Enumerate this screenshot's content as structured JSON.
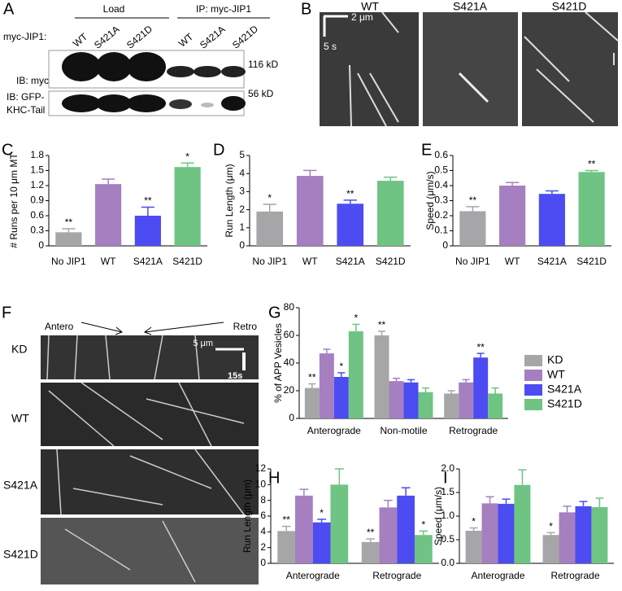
{
  "figure_a": {
    "letter": "A",
    "load": "Load",
    "ip": "IP: myc-JIP1",
    "row_label": "myc-JIP1:",
    "lanes": [
      "WT",
      "S421A",
      "S421D",
      "WT",
      "S421A",
      "S421D"
    ],
    "markers": [
      "116 kD",
      "56 kD"
    ],
    "blots": [
      "IB: myc",
      "IB: GFP-",
      "KHC-Tail"
    ]
  },
  "figure_b": {
    "letter": "B",
    "scale_x": "2 μm",
    "scale_t": "5 s",
    "labels": [
      "WT",
      "S421A",
      "S421D"
    ]
  },
  "figure_f": {
    "letter": "F",
    "antero": "Antero",
    "retro": "Retro",
    "scale_x": "5 μm",
    "scale_t": "15s",
    "rows": [
      "KD",
      "WT",
      "S421A",
      "S421D"
    ]
  },
  "chart_data": [
    {
      "panel": "C",
      "type": "bar",
      "ylabel": "# Runs per 10 μm MT",
      "categories": [
        "No JIP1",
        "WT",
        "S421A",
        "S421D"
      ],
      "values": [
        0.27,
        1.23,
        0.6,
        1.57
      ],
      "errors": [
        0.07,
        0.1,
        0.17,
        0.08
      ],
      "colors": [
        "#a6a6a8",
        "#a57fc0",
        "#4c4cf2",
        "#6fc483"
      ],
      "significance": [
        "**",
        null,
        "**",
        "*"
      ],
      "ylim": [
        0,
        1.8
      ],
      "yticks": [
        0,
        0.3,
        0.6,
        0.9,
        1.2,
        1.5,
        1.8
      ]
    },
    {
      "panel": "D",
      "type": "bar",
      "ylabel": "Run Length (μm)",
      "categories": [
        "No JIP1",
        "WT",
        "S421A",
        "S421D"
      ],
      "values": [
        1.9,
        3.87,
        2.33,
        3.6
      ],
      "errors": [
        0.4,
        0.3,
        0.2,
        0.2
      ],
      "colors": [
        "#a6a6a8",
        "#a57fc0",
        "#4c4cf2",
        "#6fc483"
      ],
      "significance": [
        "*",
        null,
        "**",
        null
      ],
      "ylim": [
        0,
        5
      ],
      "yticks": [
        0,
        1,
        2,
        3,
        4,
        5
      ]
    },
    {
      "panel": "E",
      "type": "bar",
      "ylabel": "Speed (μm/s)",
      "categories": [
        "No JIP1",
        "WT",
        "S421A",
        "S421D"
      ],
      "values": [
        0.23,
        0.4,
        0.345,
        0.49
      ],
      "errors": [
        0.03,
        0.02,
        0.02,
        0.01
      ],
      "colors": [
        "#a6a6a8",
        "#a57fc0",
        "#4c4cf2",
        "#6fc483"
      ],
      "significance": [
        "**",
        null,
        null,
        "**"
      ],
      "ylim": [
        0,
        0.6
      ],
      "yticks": [
        0,
        0.1,
        0.2,
        0.3,
        0.4,
        0.5,
        0.6
      ]
    },
    {
      "panel": "G",
      "type": "grouped_bar",
      "ylabel": "% of APP Vesicles",
      "legend": "right",
      "categories": [
        "Anterograde",
        "Non-motile",
        "Retrograde"
      ],
      "series": [
        {
          "name": "KD",
          "color": "#a6a6a8",
          "values": [
            22,
            60,
            18
          ],
          "errors": [
            3,
            3,
            2
          ],
          "significance": [
            "**",
            "**",
            null
          ]
        },
        {
          "name": "WT",
          "color": "#a57fc0",
          "values": [
            47,
            27,
            26
          ],
          "errors": [
            3,
            2,
            2
          ]
        },
        {
          "name": "S421A",
          "color": "#4c4cf2",
          "values": [
            30,
            26,
            44
          ],
          "errors": [
            3,
            2,
            3
          ],
          "significance": [
            "*",
            null,
            "**"
          ]
        },
        {
          "name": "S421D",
          "color": "#6fc483",
          "values": [
            63,
            19,
            18
          ],
          "errors": [
            5,
            3,
            4
          ],
          "significance": [
            "*",
            null,
            null
          ]
        }
      ],
      "ylim": [
        0,
        80
      ],
      "yticks": [
        0,
        20,
        40,
        60,
        80
      ]
    },
    {
      "panel": "H",
      "type": "grouped_bar",
      "ylabel": "Run Length (μm)",
      "categories": [
        "Anterograde",
        "Retrograde"
      ],
      "series": [
        {
          "color": "#a6a6a8",
          "values": [
            4.1,
            2.7
          ],
          "errors": [
            0.6,
            0.4
          ],
          "significance": [
            "**",
            "**"
          ]
        },
        {
          "color": "#a57fc0",
          "values": [
            8.6,
            7.1
          ],
          "errors": [
            0.8,
            0.9
          ]
        },
        {
          "color": "#4c4cf2",
          "values": [
            5.2,
            8.6
          ],
          "errors": [
            0.4,
            1
          ],
          "significance": [
            "*",
            null
          ]
        },
        {
          "color": "#6fc483",
          "values": [
            10,
            3.6
          ],
          "errors": [
            2,
            0.5
          ],
          "significance": [
            null,
            "*"
          ]
        }
      ],
      "ylim": [
        0,
        12
      ],
      "yticks": [
        0,
        2,
        4,
        6,
        8,
        10,
        12
      ]
    },
    {
      "panel": "I",
      "type": "grouped_bar",
      "ylabel": "Speed (μm/s)",
      "categories": [
        "Anterograde",
        "Retrograde"
      ],
      "series": [
        {
          "color": "#a6a6a8",
          "values": [
            0.69,
            0.6
          ],
          "errors": [
            0.06,
            0.05
          ],
          "significance": [
            "*",
            "*"
          ]
        },
        {
          "color": "#a57fc0",
          "values": [
            1.27,
            1.08
          ],
          "errors": [
            0.14,
            0.13
          ]
        },
        {
          "color": "#4c4cf2",
          "values": [
            1.26,
            1.21
          ],
          "errors": [
            0.1,
            0.1
          ]
        },
        {
          "color": "#6fc483",
          "values": [
            1.66,
            1.19
          ],
          "errors": [
            0.32,
            0.19
          ]
        }
      ],
      "ylim": [
        0,
        2
      ],
      "yticks": [
        {
          "value": 0,
          "label": "0.0"
        },
        0.5,
        {
          "value": 1,
          "label": "1.0"
        },
        1.5,
        {
          "value": 2,
          "label": "2.0"
        }
      ]
    }
  ]
}
